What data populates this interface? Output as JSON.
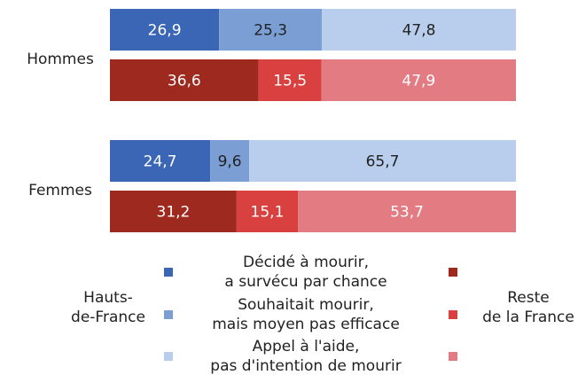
{
  "chart_data": {
    "type": "bar",
    "orientation": "horizontal",
    "stacked": true,
    "categories": [
      "Hommes",
      "Femmes"
    ],
    "xlim": [
      0,
      100
    ],
    "legend_items": [
      [
        "Décidé à mourir,",
        "a survécu par chance"
      ],
      [
        "Souhaitait mourir,",
        "mais moyen pas efficace"
      ],
      [
        "Appel à l'aide,",
        "pas d'intention de mourir"
      ]
    ],
    "groups": [
      {
        "name": [
          "Hauts-",
          "de-France"
        ],
        "series": [
          {
            "color": "#3b66b5",
            "label_color": "#ffffff",
            "values": [
              26.9,
              24.7
            ],
            "value_labels": [
              "26,9",
              "24,7"
            ]
          },
          {
            "color": "#7b9fd4",
            "label_color": "#222222",
            "values": [
              25.3,
              9.6
            ],
            "value_labels": [
              "25,3",
              "9,6"
            ]
          },
          {
            "color": "#b9cdec",
            "label_color": "#222222",
            "values": [
              47.8,
              65.7
            ],
            "value_labels": [
              "47,8",
              "65,7"
            ]
          }
        ]
      },
      {
        "name": [
          "Reste",
          "de la France"
        ],
        "series": [
          {
            "color": "#9e2a1f",
            "label_color": "#ffffff",
            "values": [
              36.6,
              31.2
            ],
            "value_labels": [
              "36,6",
              "31,2"
            ]
          },
          {
            "color": "#d94141",
            "label_color": "#ffffff",
            "values": [
              15.5,
              15.1
            ],
            "value_labels": [
              "15,5",
              "15,1"
            ]
          },
          {
            "color": "#e37b82",
            "label_color": "#ffffff",
            "values": [
              47.9,
              53.7
            ],
            "value_labels": [
              "47,9",
              "53,7"
            ]
          }
        ]
      }
    ]
  }
}
